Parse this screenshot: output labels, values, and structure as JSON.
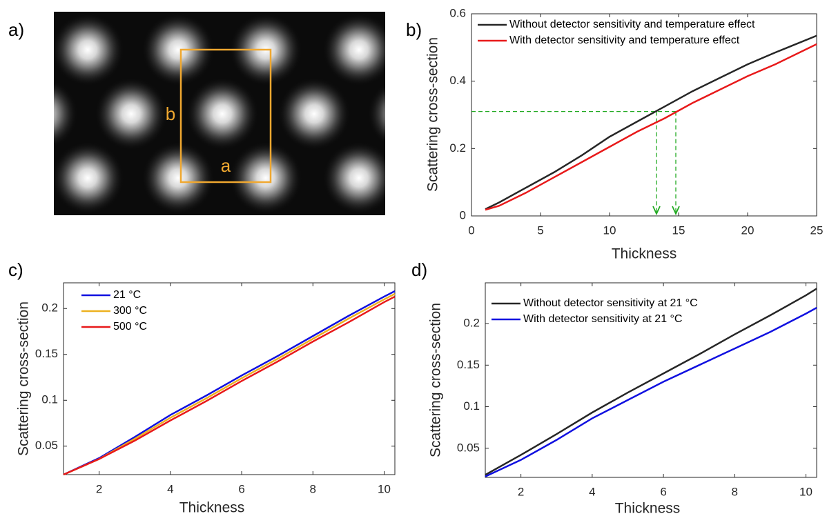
{
  "chart_data": [
    {
      "type": "image",
      "label": "a)",
      "color": "#f0a830",
      "annotations": [
        "b",
        "a"
      ]
    },
    {
      "type": "line",
      "label": "b)",
      "xlabel": "Thickness",
      "ylabel": "Scattering cross-section",
      "xlim": [
        0,
        25
      ],
      "ylim": [
        0,
        0.6
      ],
      "xticks": [
        0,
        5,
        10,
        15,
        20,
        25
      ],
      "yticks": [
        0,
        0.2,
        0.4,
        0.6
      ],
      "x": [
        1,
        2,
        4,
        6,
        8,
        10,
        12,
        14,
        16,
        18,
        20,
        22,
        25
      ],
      "series": [
        {
          "name": "Without detector sensitivity and temperature effect",
          "color": "#262626",
          "values": [
            0.02,
            0.04,
            0.085,
            0.13,
            0.18,
            0.235,
            0.28,
            0.325,
            0.37,
            0.41,
            0.45,
            0.485,
            0.535
          ]
        },
        {
          "name": "With detector sensitivity and temperature effect",
          "color": "#e8191a",
          "values": [
            0.018,
            0.03,
            0.07,
            0.115,
            0.16,
            0.205,
            0.25,
            0.29,
            0.335,
            0.375,
            0.415,
            0.45,
            0.51
          ]
        }
      ],
      "guides": {
        "color": "#22aa22",
        "y": 0.31,
        "x": [
          13.4,
          14.8
        ]
      }
    },
    {
      "type": "line",
      "label": "c)",
      "xlabel": "Thickness",
      "ylabel": "Scattering cross-section",
      "xlim": [
        1,
        10.3
      ],
      "ylim": [
        0.019,
        0.228
      ],
      "xticks": [
        2,
        4,
        6,
        8,
        10
      ],
      "yticks": [
        0.05,
        0.1,
        0.15,
        0.2
      ],
      "x": [
        1,
        2,
        3,
        4,
        5,
        6,
        7,
        8,
        9,
        10,
        10.3
      ],
      "series": [
        {
          "name": "21 °C",
          "color": "#1010e0",
          "values": [
            0.019,
            0.037,
            0.06,
            0.084,
            0.105,
            0.127,
            0.148,
            0.17,
            0.192,
            0.213,
            0.219
          ]
        },
        {
          "name": "300 °C",
          "color": "#edb120",
          "values": [
            0.019,
            0.036,
            0.058,
            0.081,
            0.102,
            0.124,
            0.145,
            0.167,
            0.189,
            0.21,
            0.216
          ]
        },
        {
          "name": "500 °C",
          "color": "#e8191a",
          "values": [
            0.019,
            0.036,
            0.056,
            0.078,
            0.099,
            0.121,
            0.142,
            0.164,
            0.185,
            0.207,
            0.213
          ]
        }
      ]
    },
    {
      "type": "line",
      "label": "d)",
      "xlabel": "Thickness",
      "ylabel": "Scattering cross-section",
      "xlim": [
        1,
        10.3
      ],
      "ylim": [
        0.015,
        0.249
      ],
      "xticks": [
        2,
        4,
        6,
        8,
        10
      ],
      "yticks": [
        0.05,
        0.1,
        0.15,
        0.2
      ],
      "x": [
        1,
        2,
        3,
        4,
        5,
        6,
        7,
        8,
        9,
        10,
        10.3
      ],
      "series": [
        {
          "name": "Without detector sensitivity at 21 °C",
          "color": "#262626",
          "values": [
            0.018,
            0.042,
            0.067,
            0.093,
            0.117,
            0.14,
            0.163,
            0.187,
            0.21,
            0.234,
            0.242
          ]
        },
        {
          "name": "With detector sensitivity at 21 °C",
          "color": "#1010e0",
          "values": [
            0.016,
            0.036,
            0.06,
            0.086,
            0.108,
            0.13,
            0.15,
            0.17,
            0.19,
            0.212,
            0.219
          ]
        }
      ]
    }
  ]
}
